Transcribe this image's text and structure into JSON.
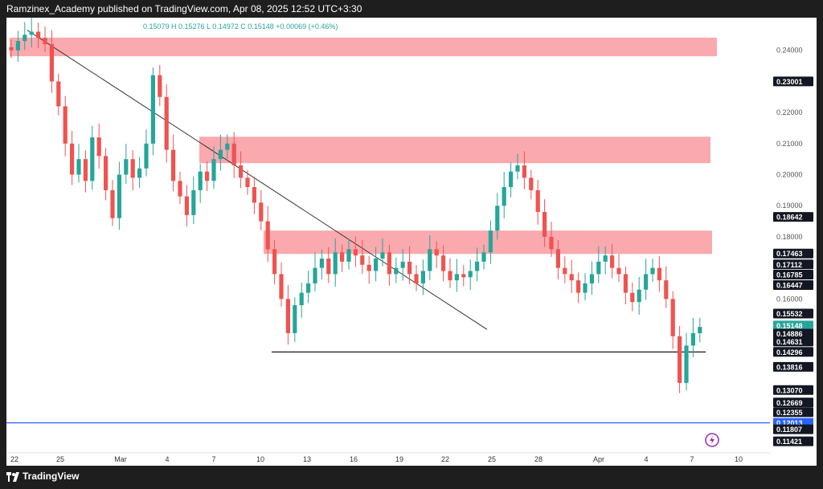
{
  "header": {
    "publisher_line": "Ramzinex_Academy published on TradingView.com, Apr 08, 2025 12:52 UTC+3:30"
  },
  "footer": {
    "brand": "TradingView"
  },
  "icons": {
    "logo": "tradingview-logo-icon",
    "lightning": "lightning-icon"
  },
  "colors": {
    "up": "#26a69a",
    "down": "#ef5350",
    "zone": "#f99aa0",
    "blue_line": "#2962ff",
    "last_price": "#26a69a",
    "crosshair_label": "#2962ff"
  },
  "legend": {
    "ohlc_text": "0.15079  H 0.15276  L 0.14972  C 0.15148  +0.00069 (+0.46%)"
  },
  "chart_data": {
    "type": "candlestick",
    "x_ticks": [
      "22",
      "25",
      "Mar",
      "4",
      "7",
      "10",
      "13",
      "16",
      "19",
      "22",
      "25",
      "28",
      "Apr",
      "4",
      "7",
      "10"
    ],
    "y_ticks": [
      "0.24000",
      "0.22000",
      "0.21000",
      "0.20000",
      "0.19000",
      "0.18000",
      "0.16000"
    ],
    "ylim": [
      0.111,
      0.25
    ],
    "price_labels": [
      {
        "text": "0.23001",
        "value": 0.23001,
        "style": "dark"
      },
      {
        "text": "0.18642",
        "value": 0.18642,
        "style": "dark"
      },
      {
        "text": "0.17463",
        "value": 0.17463,
        "style": "dark"
      },
      {
        "text": "0.17112",
        "value": 0.17112,
        "style": "dark"
      },
      {
        "text": "0.16785",
        "value": 0.16785,
        "style": "dark"
      },
      {
        "text": "0.16447",
        "value": 0.16447,
        "style": "dark"
      },
      {
        "text": "0.15532",
        "value": 0.15532,
        "style": "dark"
      },
      {
        "text": "0.15148",
        "value": 0.15148,
        "style": "green"
      },
      {
        "text": "0.14886",
        "value": 0.14886,
        "style": "dark"
      },
      {
        "text": "0.14631",
        "value": 0.14631,
        "style": "dark"
      },
      {
        "text": "0.14296",
        "value": 0.14296,
        "style": "dark"
      },
      {
        "text": "0.13816",
        "value": 0.13816,
        "style": "dark"
      },
      {
        "text": "0.13070",
        "value": 0.1307,
        "style": "dark"
      },
      {
        "text": "0.12669",
        "value": 0.12669,
        "style": "dark"
      },
      {
        "text": "0.12355",
        "value": 0.12355,
        "style": "dark"
      },
      {
        "text": "0.12013",
        "value": 0.12013,
        "style": "blue"
      },
      {
        "text": "0.11807",
        "value": 0.11807,
        "style": "dark"
      },
      {
        "text": "0.11421",
        "value": 0.11421,
        "style": "dark"
      }
    ],
    "zones": [
      {
        "from": 0.2381,
        "to": 0.2441
      },
      {
        "from": 0.2037,
        "to": 0.2122
      },
      {
        "from": 0.1745,
        "to": 0.182
      }
    ],
    "horizontal_lines": [
      {
        "value": 0.14296,
        "color": "#000000"
      },
      {
        "value": 0.12013,
        "color": "#2962ff"
      }
    ],
    "trendline": {
      "from": {
        "day": 0,
        "value": 0.2465
      },
      "to": {
        "day": 44,
        "value": 0.1502
      }
    },
    "closes": [
      0.24,
      0.243,
      0.245,
      0.246,
      0.244,
      0.242,
      0.23,
      0.222,
      0.21,
      0.2,
      0.205,
      0.198,
      0.212,
      0.206,
      0.195,
      0.186,
      0.2,
      0.205,
      0.199,
      0.202,
      0.21,
      0.232,
      0.225,
      0.208,
      0.198,
      0.193,
      0.187,
      0.195,
      0.201,
      0.198,
      0.205,
      0.208,
      0.21,
      0.203,
      0.199,
      0.196,
      0.191,
      0.185,
      0.176,
      0.168,
      0.16,
      0.149,
      0.158,
      0.162,
      0.165,
      0.17,
      0.173,
      0.168,
      0.175,
      0.172,
      0.176,
      0.174,
      0.171,
      0.169,
      0.173,
      0.175,
      0.168,
      0.17,
      0.172,
      0.168,
      0.165,
      0.169,
      0.176,
      0.174,
      0.169,
      0.166,
      0.168,
      0.167,
      0.169,
      0.172,
      0.175,
      0.182,
      0.19,
      0.196,
      0.201,
      0.203,
      0.199,
      0.195,
      0.188,
      0.18,
      0.176,
      0.17,
      0.168,
      0.166,
      0.162,
      0.165,
      0.168,
      0.172,
      0.174,
      0.17,
      0.168,
      0.162,
      0.159,
      0.163,
      0.168,
      0.17,
      0.166,
      0.16,
      0.148,
      0.133,
      0.145,
      0.149,
      0.151
    ]
  }
}
